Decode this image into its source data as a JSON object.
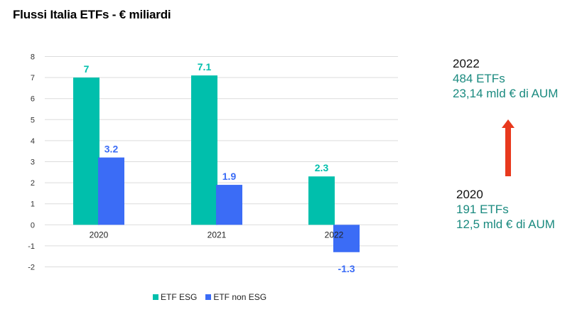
{
  "title": "Flussi Italia ETFs - € miliardi",
  "chart_data": {
    "type": "bar",
    "categories": [
      "2020",
      "2021",
      "2022"
    ],
    "series": [
      {
        "name": "ETF ESG",
        "values": [
          7,
          7.1,
          2.3
        ],
        "labels": [
          "7",
          "7.1",
          "2.3"
        ],
        "color": "#00bfac"
      },
      {
        "name": "ETF non ESG",
        "values": [
          3.2,
          1.9,
          -1.3
        ],
        "labels": [
          "3.2",
          "1.9",
          "-1.3"
        ],
        "color": "#3b6cf6"
      }
    ],
    "yticks": [
      "8",
      "7",
      "6",
      "5",
      "4",
      "3",
      "2",
      "1",
      "0",
      "-1",
      "-2"
    ],
    "ylim": [
      -2,
      8
    ],
    "grid": true,
    "legend": "bottom"
  },
  "annotations": {
    "top": {
      "year": "2022",
      "line1": "484 ETFs",
      "line2": "23,14 mld € di AUM"
    },
    "bottom": {
      "year": "2020",
      "line1": "191 ETFs",
      "line2": "12,5 mld € di AUM"
    },
    "arrow_color": "#e8391d"
  }
}
